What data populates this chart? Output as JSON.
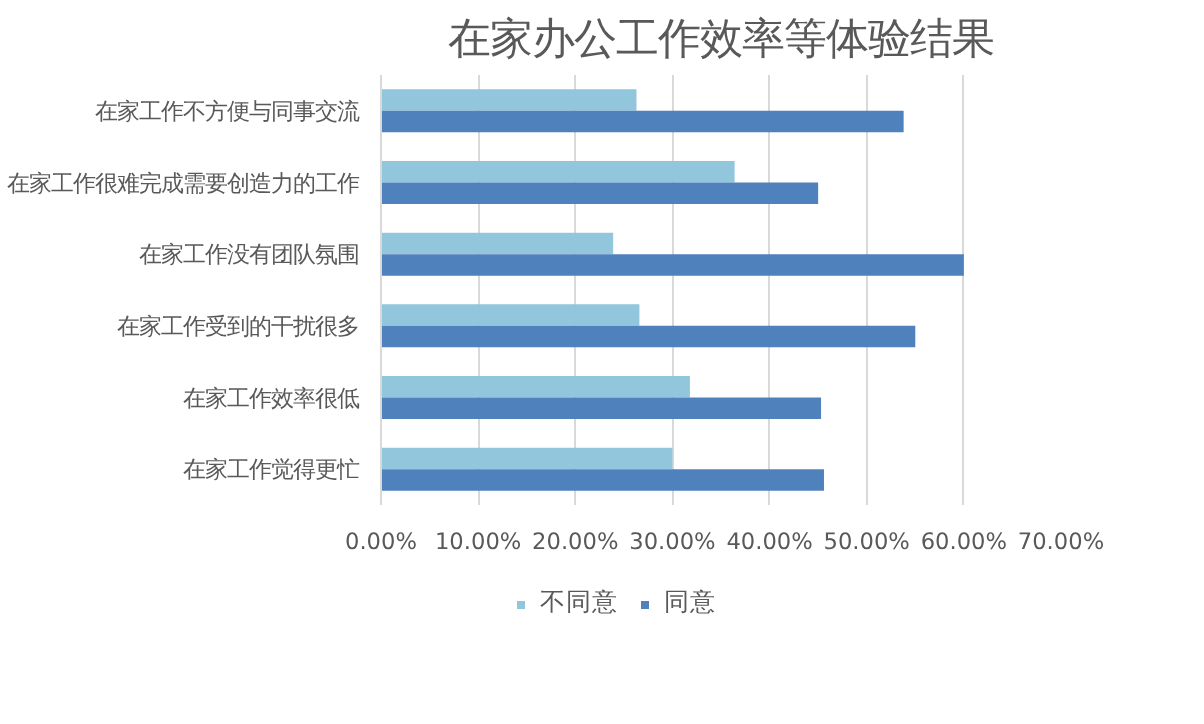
{
  "chart_data": {
    "type": "bar",
    "orientation": "horizontal",
    "title": "在家办公工作效率等体验结果",
    "categories": [
      "在家工作不方便与同事交流",
      "在家工作很难完成需要创造力的工作",
      "在家工作没有团队氛围",
      "在家工作受到的干扰很多",
      "在家工作效率很低",
      "在家工作觉得更忙"
    ],
    "series": [
      {
        "name": "不同意",
        "color": "#92c6dd",
        "values": [
          26.3,
          36.4,
          23.9,
          26.6,
          31.8,
          30.0
        ]
      },
      {
        "name": "同意",
        "color": "#4f81bd",
        "values": [
          53.8,
          45.0,
          60.0,
          55.0,
          45.3,
          45.6
        ]
      }
    ],
    "xlim": [
      0,
      70
    ],
    "xticks": [
      {
        "value": 0,
        "label": "0.00%"
      },
      {
        "value": 10,
        "label": "10.00%"
      },
      {
        "value": 20,
        "label": "20.00%"
      },
      {
        "value": 30,
        "label": "30.00%"
      },
      {
        "value": 40,
        "label": "40.00%"
      },
      {
        "value": 50,
        "label": "50.00%"
      },
      {
        "value": 60,
        "label": "60.00%"
      },
      {
        "value": 70,
        "label": "70.00%"
      }
    ],
    "grid": "x",
    "legend": "bottom"
  }
}
